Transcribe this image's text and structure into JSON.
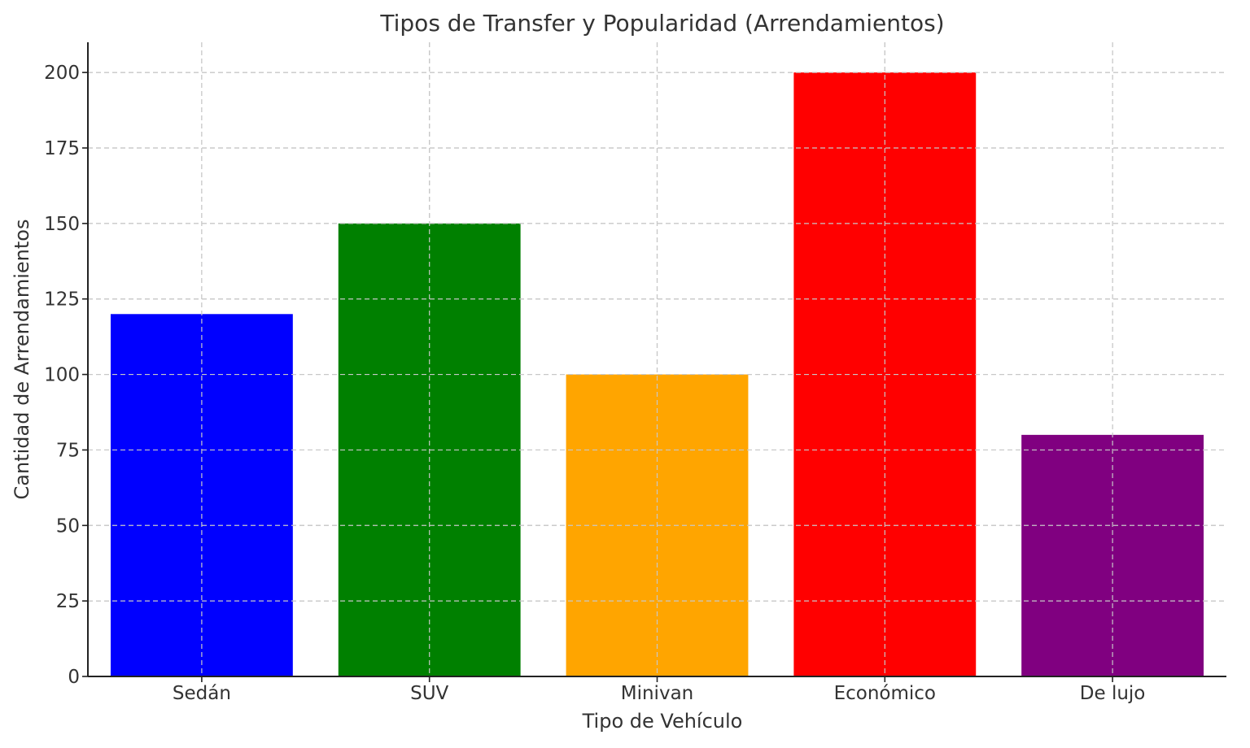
{
  "chart_data": {
    "type": "bar",
    "title": "Tipos de Transfer y Popularidad (Arrendamientos)",
    "xlabel": "Tipo de Vehículo",
    "ylabel": "Cantidad de Arrendamientos",
    "categories": [
      "Sedán",
      "SUV",
      "Minivan",
      "Económico",
      "De lujo"
    ],
    "values": [
      120,
      150,
      100,
      200,
      80
    ],
    "colors": [
      "#0000ff",
      "#008000",
      "#ffa500",
      "#ff0000",
      "#800080"
    ],
    "ylim": [
      0,
      210
    ],
    "yticks": [
      0,
      25,
      50,
      75,
      100,
      125,
      150,
      175,
      200
    ],
    "grid": true,
    "legend": "none"
  }
}
